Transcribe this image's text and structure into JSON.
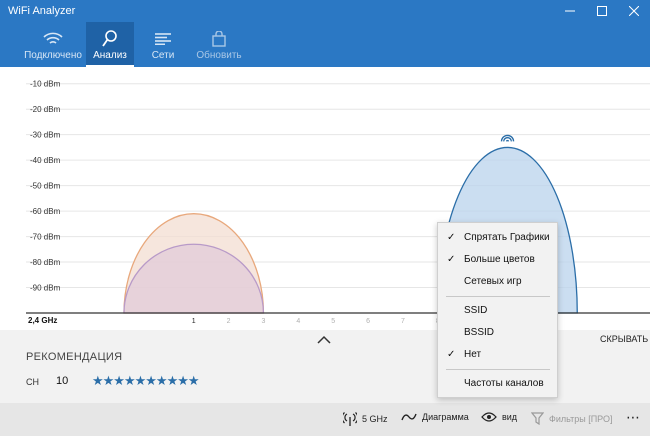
{
  "window": {
    "title": "WiFi Analyzer"
  },
  "nav": {
    "tabs": [
      {
        "label": "Подключено",
        "icon": "wifi-icon"
      },
      {
        "label": "Анализ",
        "icon": "search-icon",
        "active": true
      },
      {
        "label": "Сети",
        "icon": "list-icon"
      },
      {
        "label": "Обновить",
        "icon": "bag-icon",
        "disabled": true
      }
    ]
  },
  "chart_data": {
    "type": "area",
    "band": "2,4 GHz",
    "y_ticks": [
      "-10 dBm",
      "-20 dBm",
      "-30 dBm",
      "-40 dBm",
      "-50 dBm",
      "-60 dBm",
      "-70 dBm",
      "-80 dBm",
      "-90 dBm"
    ],
    "ylim": [
      -100,
      -5
    ],
    "x_ticks": [
      "1",
      "2",
      "3",
      "4",
      "5",
      "6",
      "7",
      "8",
      "9"
    ],
    "xlim": [
      -1.2,
      14
    ],
    "grid": true,
    "series": [
      {
        "channel": 1,
        "peak_dbm": -61,
        "color": "#e8a87c",
        "fill": "#f3ddd2"
      },
      {
        "channel": 1,
        "peak_dbm": -73,
        "color": "#b89ac8",
        "fill": "#e2cbd8"
      },
      {
        "channel": 10,
        "peak_dbm": -35,
        "color": "#2b6ea8",
        "fill": "#b9d3ec",
        "connected": true
      }
    ]
  },
  "collapse": {
    "hide_label": "СКРЫВАТЬ"
  },
  "recommendation": {
    "title": "РЕКОМЕНДАЦИЯ",
    "ch_label": "CH",
    "channel": "10",
    "stars": "★★★★★★★★★★"
  },
  "bottombar": {
    "band": "5 GHz",
    "chart": "Диаграмма",
    "view": "вид",
    "filters": "Фильтры [ПРО]",
    "more": "⋯"
  },
  "context_menu": {
    "items": [
      {
        "label": "Спрятать Графики",
        "checked": true
      },
      {
        "label": "Больше цветов",
        "checked": true
      },
      {
        "label": "Сетевых игр",
        "checked": false
      },
      {
        "separator": true
      },
      {
        "label": "SSID",
        "checked": false
      },
      {
        "label": "BSSID",
        "checked": false
      },
      {
        "label": "Нет",
        "checked": true
      },
      {
        "separator": true
      },
      {
        "label": "Частоты каналов",
        "checked": false
      }
    ]
  },
  "colors": {
    "accent": "#2b78c4",
    "accent_dark": "#1f62a6"
  }
}
